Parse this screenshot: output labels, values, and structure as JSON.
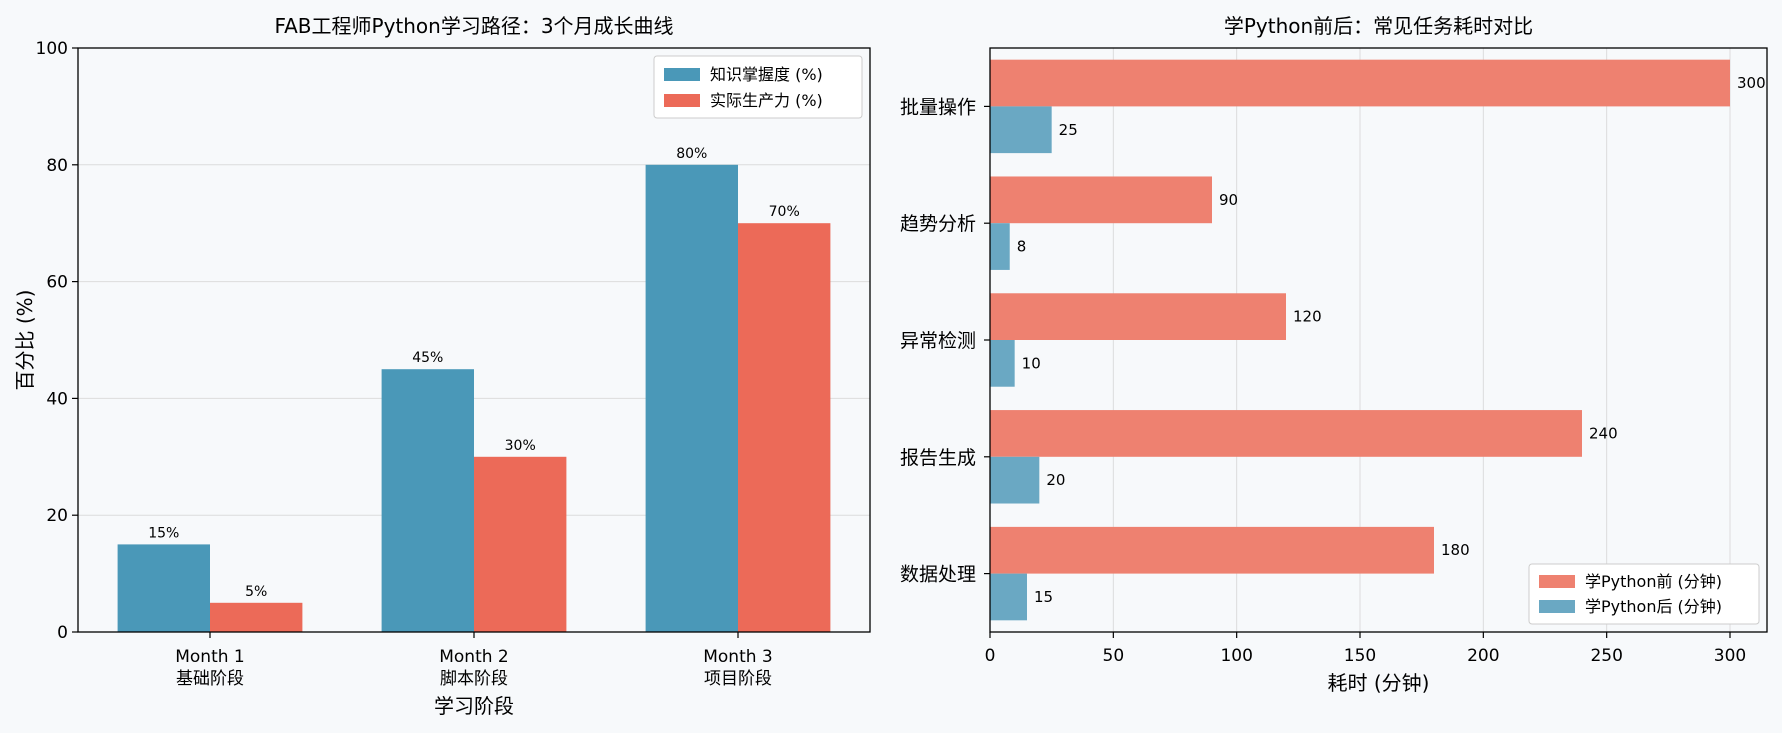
{
  "chart_data": [
    {
      "type": "bar",
      "title": "FAB工程师Python学习路径：3个月成长曲线",
      "xlabel": "学习阶段",
      "ylabel": "百分比 (%)",
      "ylim": [
        0,
        100
      ],
      "yticks": [
        "0",
        "20",
        "40",
        "60",
        "80",
        "100"
      ],
      "categories": [
        {
          "line1": "Month 1",
          "line2": "基础阶段"
        },
        {
          "line1": "Month 2",
          "line2": "脚本阶段"
        },
        {
          "line1": "Month 3",
          "line2": "项目阶段"
        }
      ],
      "series": [
        {
          "name": "知识掌握度 (%)",
          "values": [
            15,
            45,
            80
          ],
          "color": "#4a98b8"
        },
        {
          "name": "实际生产力 (%)",
          "values": [
            5,
            30,
            70
          ],
          "color": "#ec6a58"
        }
      ],
      "data_labels": [
        [
          "15%",
          "45%",
          "80%"
        ],
        [
          "5%",
          "30%",
          "70%"
        ]
      ],
      "grid": "y",
      "legend_position": "top-right"
    },
    {
      "type": "bar",
      "orientation": "horizontal",
      "title": "学Python前后：常见任务耗时对比",
      "xlabel": "耗时 (分钟)",
      "ylabel": "",
      "xlim": [
        0,
        315
      ],
      "xticks": [
        "0",
        "50",
        "100",
        "150",
        "200",
        "250",
        "300"
      ],
      "categories": [
        "数据处理",
        "报告生成",
        "异常检测",
        "趋势分析",
        "批量操作"
      ],
      "series": [
        {
          "name": "学Python前 (分钟)",
          "values": [
            180,
            240,
            120,
            90,
            300
          ],
          "color": "#ee8170"
        },
        {
          "name": "学Python后 (分钟)",
          "values": [
            15,
            20,
            10,
            8,
            25
          ],
          "color": "#6aa8c3"
        }
      ],
      "data_labels": [
        [
          "180",
          "240",
          "120",
          "90",
          "300"
        ],
        [
          "15",
          "20",
          "10",
          "8",
          "25"
        ]
      ],
      "grid": "x",
      "legend_position": "bottom-right"
    }
  ]
}
